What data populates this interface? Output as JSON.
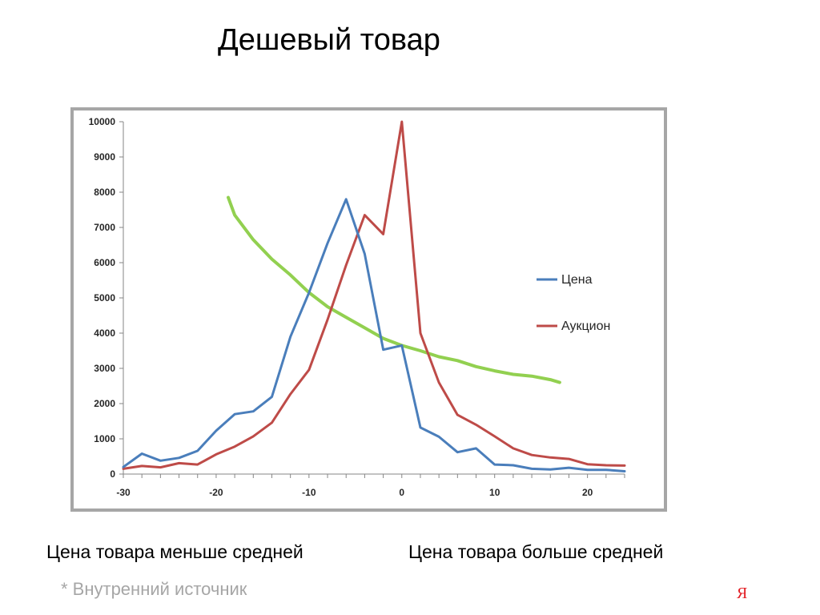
{
  "slide": {
    "title": "Дешевый товар",
    "caption_left": "Цена товара меньше средней",
    "caption_right": "Цена товара больше средней",
    "footnote": "* Внутренний источник",
    "brand": "Я",
    "brand_color": "#e31e24"
  },
  "chart_data": {
    "type": "line",
    "title": "",
    "xlabel": "",
    "ylabel": "",
    "xlim": [
      -30,
      24
    ],
    "ylim": [
      0,
      10000
    ],
    "x_ticks": [
      -30,
      -20,
      -10,
      0,
      10,
      20
    ],
    "y_ticks": [
      0,
      1000,
      2000,
      3000,
      4000,
      5000,
      6000,
      7000,
      8000,
      9000,
      10000
    ],
    "grid": false,
    "legend_position": "right",
    "series": [
      {
        "name": "Цена",
        "color": "#4a7ebb",
        "points": [
          [
            -30,
            200
          ],
          [
            -28,
            580
          ],
          [
            -26,
            380
          ],
          [
            -24,
            460
          ],
          [
            -22,
            660
          ],
          [
            -20,
            1230
          ],
          [
            -18,
            1700
          ],
          [
            -16,
            1780
          ],
          [
            -14,
            2190
          ],
          [
            -12,
            3900
          ],
          [
            -10,
            5150
          ],
          [
            -8,
            6550
          ],
          [
            -6,
            7800
          ],
          [
            -4,
            6250
          ],
          [
            -2,
            3530
          ],
          [
            0,
            3650
          ],
          [
            2,
            1320
          ],
          [
            4,
            1060
          ],
          [
            6,
            620
          ],
          [
            8,
            730
          ],
          [
            10,
            270
          ],
          [
            12,
            250
          ],
          [
            14,
            150
          ],
          [
            16,
            130
          ],
          [
            18,
            180
          ],
          [
            20,
            120
          ],
          [
            22,
            120
          ],
          [
            24,
            80
          ]
        ]
      },
      {
        "name": "Аукцион",
        "color": "#be4b48",
        "points": [
          [
            -30,
            150
          ],
          [
            -28,
            230
          ],
          [
            -26,
            190
          ],
          [
            -24,
            310
          ],
          [
            -22,
            270
          ],
          [
            -20,
            560
          ],
          [
            -18,
            780
          ],
          [
            -16,
            1070
          ],
          [
            -14,
            1460
          ],
          [
            -12,
            2270
          ],
          [
            -10,
            2960
          ],
          [
            -8,
            4380
          ],
          [
            -6,
            5930
          ],
          [
            -4,
            7350
          ],
          [
            -2,
            6810
          ],
          [
            0,
            10000
          ],
          [
            2,
            4000
          ],
          [
            4,
            2600
          ],
          [
            6,
            1680
          ],
          [
            8,
            1400
          ],
          [
            10,
            1070
          ],
          [
            12,
            730
          ],
          [
            14,
            540
          ],
          [
            16,
            470
          ],
          [
            18,
            430
          ],
          [
            20,
            280
          ],
          [
            22,
            250
          ],
          [
            24,
            240
          ]
        ]
      },
      {
        "name": "",
        "color": "#92d050",
        "points": [
          [
            -18.7,
            7850
          ],
          [
            -18,
            7350
          ],
          [
            -16,
            6650
          ],
          [
            -14,
            6100
          ],
          [
            -12,
            5650
          ],
          [
            -10,
            5150
          ],
          [
            -8,
            4750
          ],
          [
            -6,
            4450
          ],
          [
            -4,
            4150
          ],
          [
            -2,
            3850
          ],
          [
            0,
            3650
          ],
          [
            2,
            3500
          ],
          [
            4,
            3330
          ],
          [
            6,
            3220
          ],
          [
            8,
            3050
          ],
          [
            10,
            2930
          ],
          [
            12,
            2830
          ],
          [
            14,
            2780
          ],
          [
            16,
            2680
          ],
          [
            17,
            2600
          ]
        ]
      }
    ]
  }
}
